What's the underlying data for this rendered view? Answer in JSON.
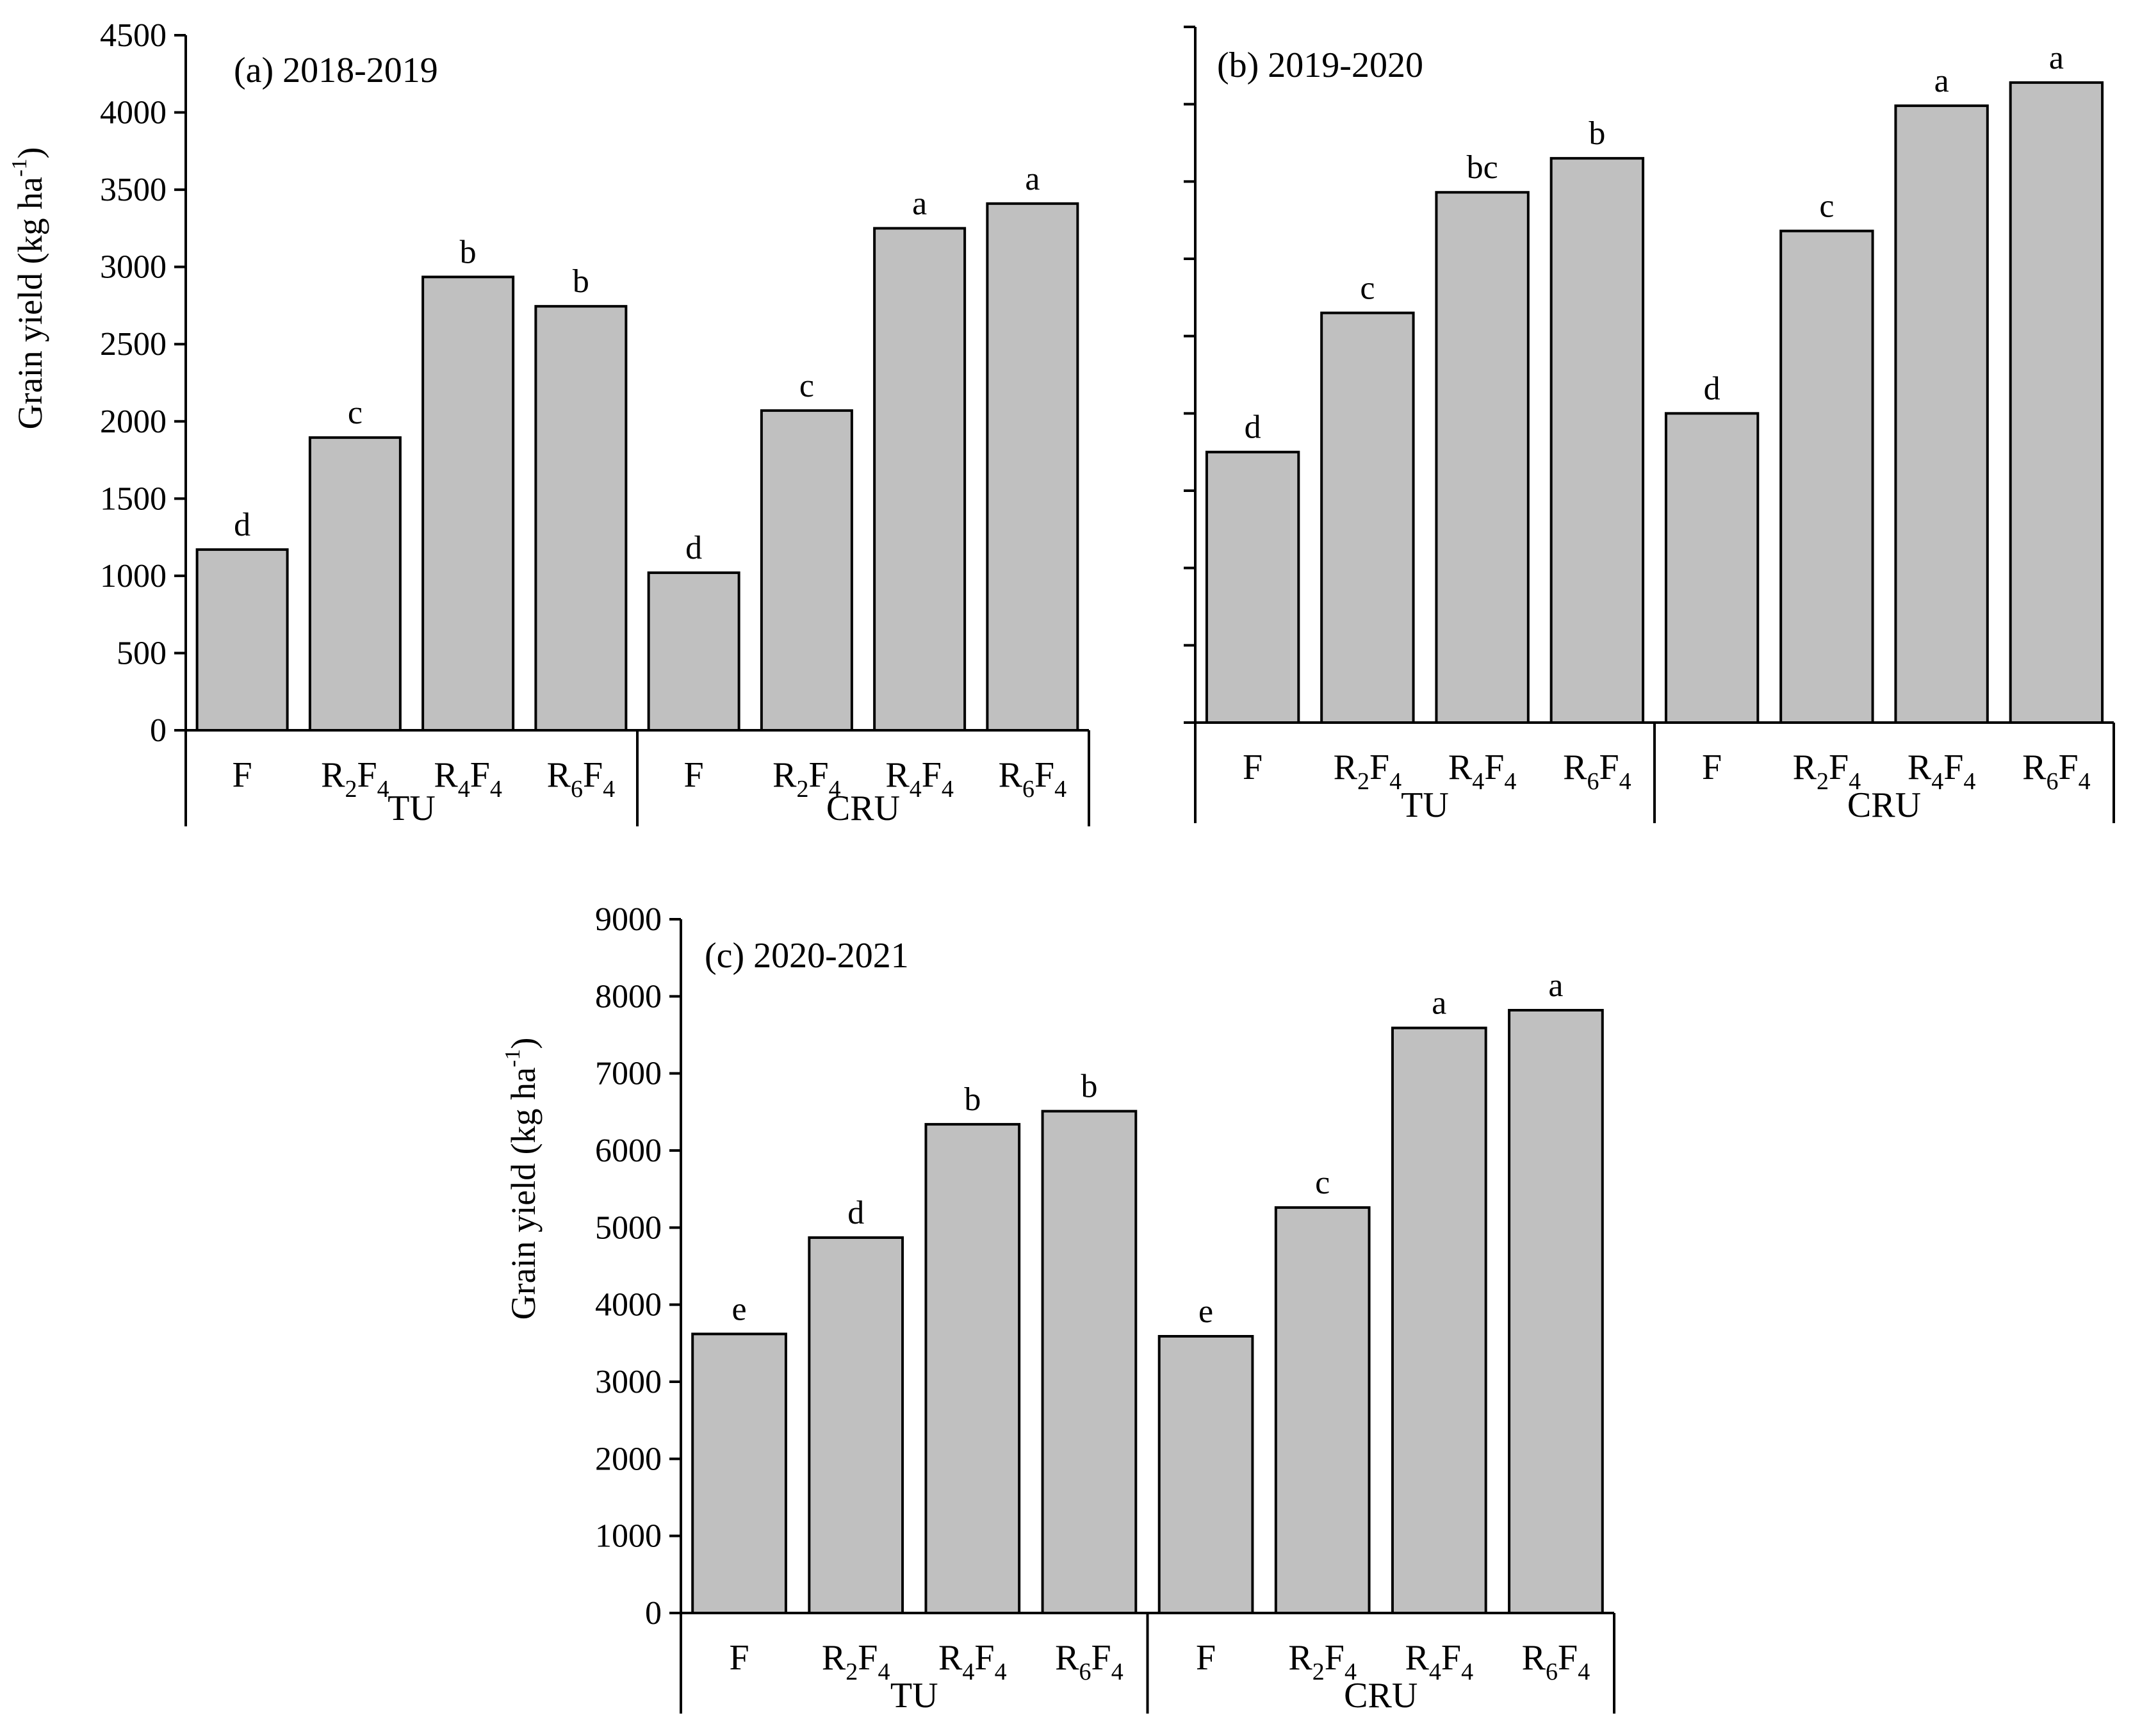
{
  "figure": {
    "colors": {
      "bar_fill": "#c0c0c0",
      "bar_stroke": "#000000",
      "axis": "#000000"
    }
  },
  "chart_data": [
    {
      "type": "bar",
      "panel_label": "(a) 2018-2019",
      "ylabel": "Grain yield (kg ha-1)",
      "ylim": [
        0,
        4500
      ],
      "yticks": [
        0,
        500,
        1000,
        1500,
        2000,
        2500,
        3000,
        3500,
        4000,
        4500
      ],
      "ytick_labels_shown": true,
      "groups": [
        {
          "name": "TU",
          "categories": [
            "F",
            "R2F4",
            "R4F4",
            "R6F4"
          ],
          "values": [
            1170,
            1895,
            2935,
            2745
          ],
          "letters": [
            "d",
            "c",
            "b",
            "b"
          ]
        },
        {
          "name": "CRU",
          "categories": [
            "F",
            "R2F4",
            "R4F4",
            "R6F4"
          ],
          "values": [
            1020,
            2070,
            3250,
            3410
          ],
          "letters": [
            "d",
            "c",
            "a",
            "a"
          ]
        }
      ],
      "grid": false
    },
    {
      "type": "bar",
      "panel_label": "(b) 2019-2020",
      "ylabel": "",
      "ylim": [
        0,
        4500
      ],
      "yticks": [
        0,
        500,
        1000,
        1500,
        2000,
        2500,
        3000,
        3500,
        4000,
        4500
      ],
      "ytick_labels_shown": false,
      "groups": [
        {
          "name": "TU",
          "categories": [
            "F",
            "R2F4",
            "R4F4",
            "R6F4"
          ],
          "values": [
            1750,
            2650,
            3430,
            3650
          ],
          "letters": [
            "d",
            "c",
            "bc",
            "b"
          ]
        },
        {
          "name": "CRU",
          "categories": [
            "F",
            "R2F4",
            "R4F4",
            "R6F4"
          ],
          "values": [
            2000,
            3180,
            3990,
            4140
          ],
          "letters": [
            "d",
            "c",
            "a",
            "a"
          ]
        }
      ],
      "grid": false
    },
    {
      "type": "bar",
      "panel_label": "(c) 2020-2021",
      "ylabel": "Grain yield (kg ha-1)",
      "ylim": [
        0,
        9000
      ],
      "yticks": [
        0,
        1000,
        2000,
        3000,
        4000,
        5000,
        6000,
        7000,
        8000,
        9000
      ],
      "ytick_labels_shown": true,
      "groups": [
        {
          "name": "TU",
          "categories": [
            "F",
            "R2F4",
            "R4F4",
            "R6F4"
          ],
          "values": [
            3620,
            4870,
            6340,
            6510
          ],
          "letters": [
            "e",
            "d",
            "b",
            "b"
          ]
        },
        {
          "name": "CRU",
          "categories": [
            "F",
            "R2F4",
            "R4F4",
            "R6F4"
          ],
          "values": [
            3590,
            5260,
            7590,
            7820
          ],
          "letters": [
            "e",
            "c",
            "a",
            "a"
          ]
        }
      ],
      "grid": false
    }
  ]
}
